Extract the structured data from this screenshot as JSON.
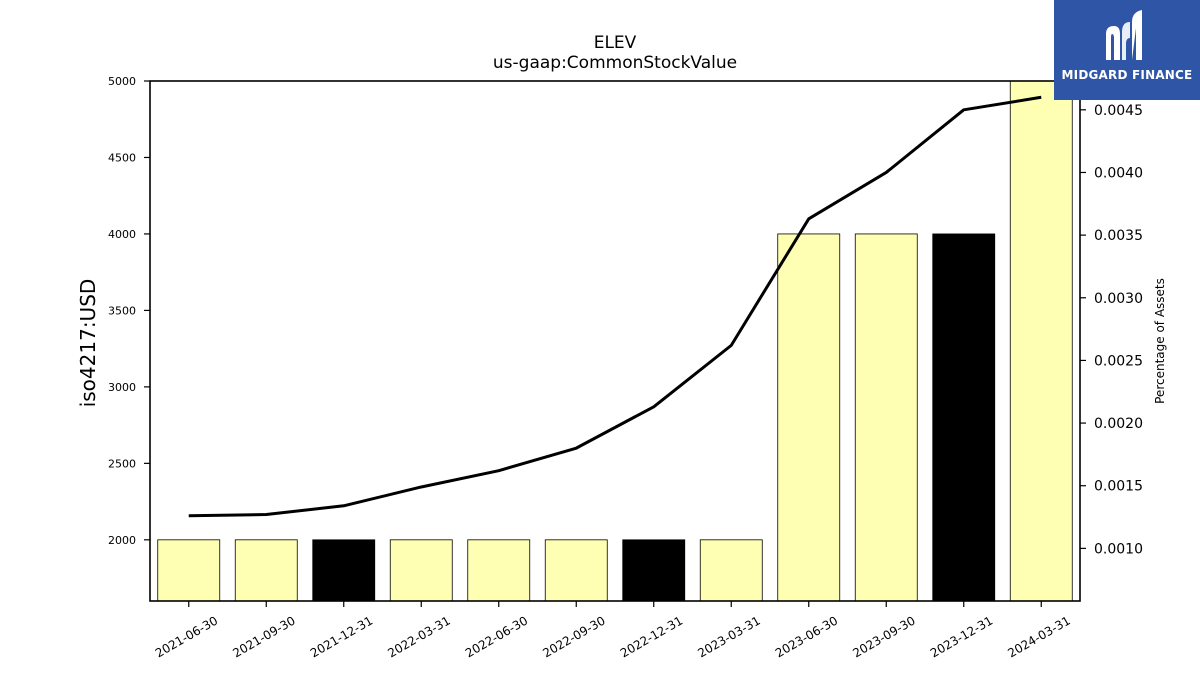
{
  "chart_data": {
    "type": "bar+line",
    "title": "ELEV",
    "subtitle": "us-gaap:CommonStockValue",
    "ylabel": "iso4217:USD",
    "y2label": "Percentage of Assets",
    "categories": [
      "2021-06-30",
      "2021-09-30",
      "2021-12-31",
      "2022-03-31",
      "2022-06-30",
      "2022-09-30",
      "2022-12-31",
      "2023-03-31",
      "2023-06-30",
      "2023-09-30",
      "2023-12-31",
      "2024-03-31"
    ],
    "bar_values": [
      2000,
      2000,
      2000,
      2000,
      2000,
      2000,
      2000,
      2000,
      4000,
      4000,
      4000,
      5000
    ],
    "bar_colors": [
      "#ffffb3",
      "#ffffb3",
      "#000000",
      "#ffffb3",
      "#ffffb3",
      "#ffffb3",
      "#000000",
      "#ffffb3",
      "#ffffb3",
      "#ffffb3",
      "#000000",
      "#ffffb3"
    ],
    "line_values": [
      0.00126,
      0.00127,
      0.00134,
      0.00149,
      0.00162,
      0.0018,
      0.00213,
      0.00262,
      0.00363,
      0.004,
      0.0045,
      0.0046
    ],
    "ylim": [
      1600,
      5000
    ],
    "y2lim": [
      0.00058,
      0.00473
    ],
    "yticks": [
      2000,
      2500,
      3000,
      3500,
      4000,
      4500,
      5000
    ],
    "y2ticks": [
      "0.0010",
      "0.0015",
      "0.0020",
      "0.0025",
      "0.0030",
      "0.0035",
      "0.0040",
      "0.0045"
    ],
    "y2tick_values": [
      0.001,
      0.0015,
      0.002,
      0.0025,
      0.003,
      0.0035,
      0.004,
      0.0045
    ],
    "grid": false
  },
  "logo": {
    "text": "MIDGARD FINANCE"
  }
}
